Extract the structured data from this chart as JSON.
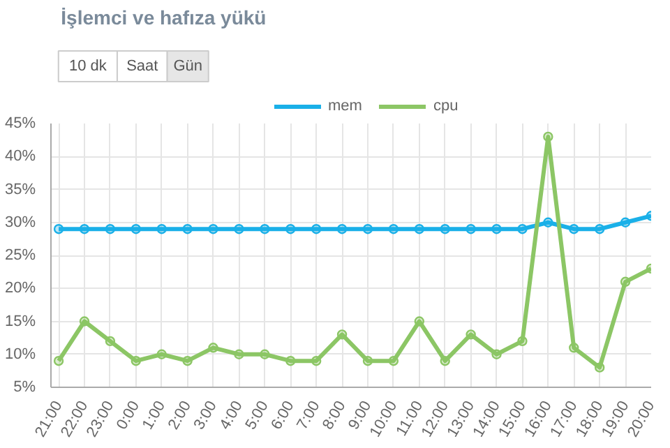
{
  "chart_data": {
    "type": "line",
    "title": "İşlemci ve hafıza yükü",
    "annotations": [
      "10 dk",
      "Saat",
      "Gün"
    ],
    "categories": [
      "21:00",
      "22:00",
      "23:00",
      "0:00",
      "1:00",
      "2:00",
      "3:00",
      "4:00",
      "5:00",
      "6:00",
      "7:00",
      "8:00",
      "9:00",
      "10:00",
      "11:00",
      "12:00",
      "13:00",
      "14:00",
      "15:00",
      "16:00",
      "17:00",
      "18:00",
      "19:00",
      "20:00"
    ],
    "series": [
      {
        "name": "mem",
        "color": "#1ab0e8",
        "values": [
          29,
          29,
          29,
          29,
          29,
          29,
          29,
          29,
          29,
          29,
          29,
          29,
          29,
          29,
          29,
          29,
          29,
          29,
          29,
          30,
          29,
          29,
          30,
          31
        ]
      },
      {
        "name": "cpu",
        "color": "#8cc665",
        "values": [
          9,
          15,
          12,
          9,
          10,
          9,
          11,
          10,
          10,
          9,
          9,
          13,
          9,
          9,
          15,
          9,
          13,
          10,
          12,
          43,
          11,
          8,
          21,
          23
        ]
      }
    ],
    "ylim": [
      5,
      45
    ],
    "yticks": [
      {
        "value": 5,
        "label": "5%"
      },
      {
        "value": 10,
        "label": "10%"
      },
      {
        "value": 15,
        "label": "15%"
      },
      {
        "value": 20,
        "label": "20%"
      },
      {
        "value": 25,
        "label": "25%"
      },
      {
        "value": 30,
        "label": "30%"
      },
      {
        "value": 35,
        "label": "35%"
      },
      {
        "value": 40,
        "label": "40%"
      },
      {
        "value": 45,
        "label": "45%"
      }
    ],
    "grid": true,
    "legend": "top",
    "marker": "circle",
    "line_style": "solid"
  }
}
